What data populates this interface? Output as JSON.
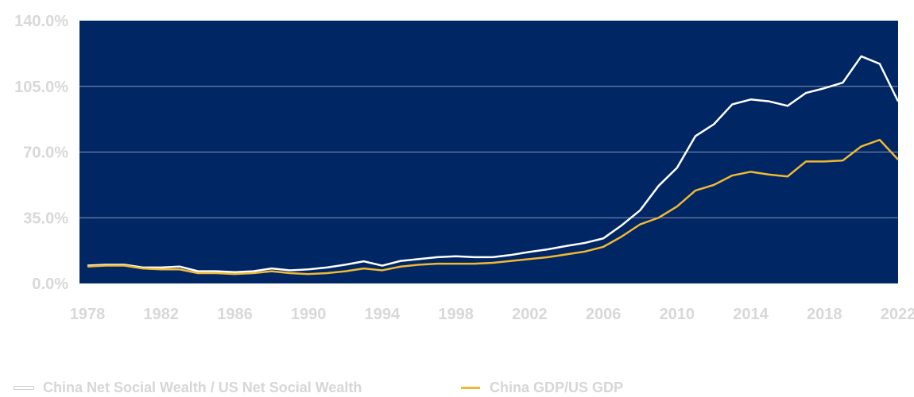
{
  "chart_data": {
    "type": "line",
    "title": "",
    "xlabel": "",
    "ylabel": "",
    "ylim": [
      0,
      140
    ],
    "yticks": [
      "0.0%",
      "35.0%",
      "70.0%",
      "105.0%",
      "140.0%"
    ],
    "ytick_values": [
      0,
      35,
      70,
      105,
      140
    ],
    "xticks": [
      "1978",
      "1982",
      "1986",
      "1990",
      "1994",
      "1998",
      "2002",
      "2006",
      "2010",
      "2014",
      "2018",
      "2022"
    ],
    "xtick_values": [
      1978,
      1982,
      1986,
      1990,
      1994,
      1998,
      2002,
      2006,
      2010,
      2014,
      2018,
      2022
    ],
    "x": [
      1978,
      1979,
      1980,
      1981,
      1982,
      1983,
      1984,
      1985,
      1986,
      1987,
      1988,
      1989,
      1990,
      1991,
      1992,
      1993,
      1994,
      1995,
      1996,
      1997,
      1998,
      1999,
      2000,
      2001,
      2002,
      2003,
      2004,
      2005,
      2006,
      2007,
      2008,
      2009,
      2010,
      2011,
      2012,
      2013,
      2014,
      2015,
      2016,
      2017,
      2018,
      2019,
      2020,
      2021,
      2022
    ],
    "series": [
      {
        "name": "China Net Social Wealth / US Net Social Wealth",
        "color": "#ffffff",
        "values": [
          9.5,
          10.0,
          10.0,
          8.5,
          8.5,
          9.0,
          6.5,
          6.5,
          6.0,
          6.5,
          8.0,
          7.0,
          7.5,
          8.5,
          10.0,
          11.8,
          9.5,
          12.0,
          13.0,
          14.0,
          14.5,
          14.0,
          14.0,
          15.2,
          16.8,
          18.2,
          20.0,
          21.6,
          24.0,
          31.0,
          39.0,
          52.0,
          61.6,
          78.5,
          84.8,
          95.4,
          98.0,
          97.0,
          94.6,
          101.5,
          104.0,
          107.0,
          121.0,
          117.0,
          97.0
        ]
      },
      {
        "name": "China GDP/US GDP",
        "color": "#f0b934",
        "values": [
          9.0,
          9.5,
          9.5,
          8.0,
          7.5,
          7.5,
          5.5,
          5.5,
          5.0,
          5.5,
          6.5,
          5.5,
          5.0,
          5.5,
          6.5,
          8.0,
          7.0,
          9.0,
          10.0,
          10.5,
          10.5,
          10.5,
          11.0,
          12.0,
          13.0,
          14.0,
          15.5,
          17.0,
          19.5,
          25.0,
          31.5,
          35.0,
          41.0,
          49.5,
          52.5,
          57.5,
          59.5,
          58.0,
          57.0,
          65.0,
          65.0,
          65.5,
          73.0,
          76.5,
          66.0
        ]
      }
    ],
    "grid": "horizontal",
    "plot_background": "#002664",
    "legend_position": "bottom"
  }
}
